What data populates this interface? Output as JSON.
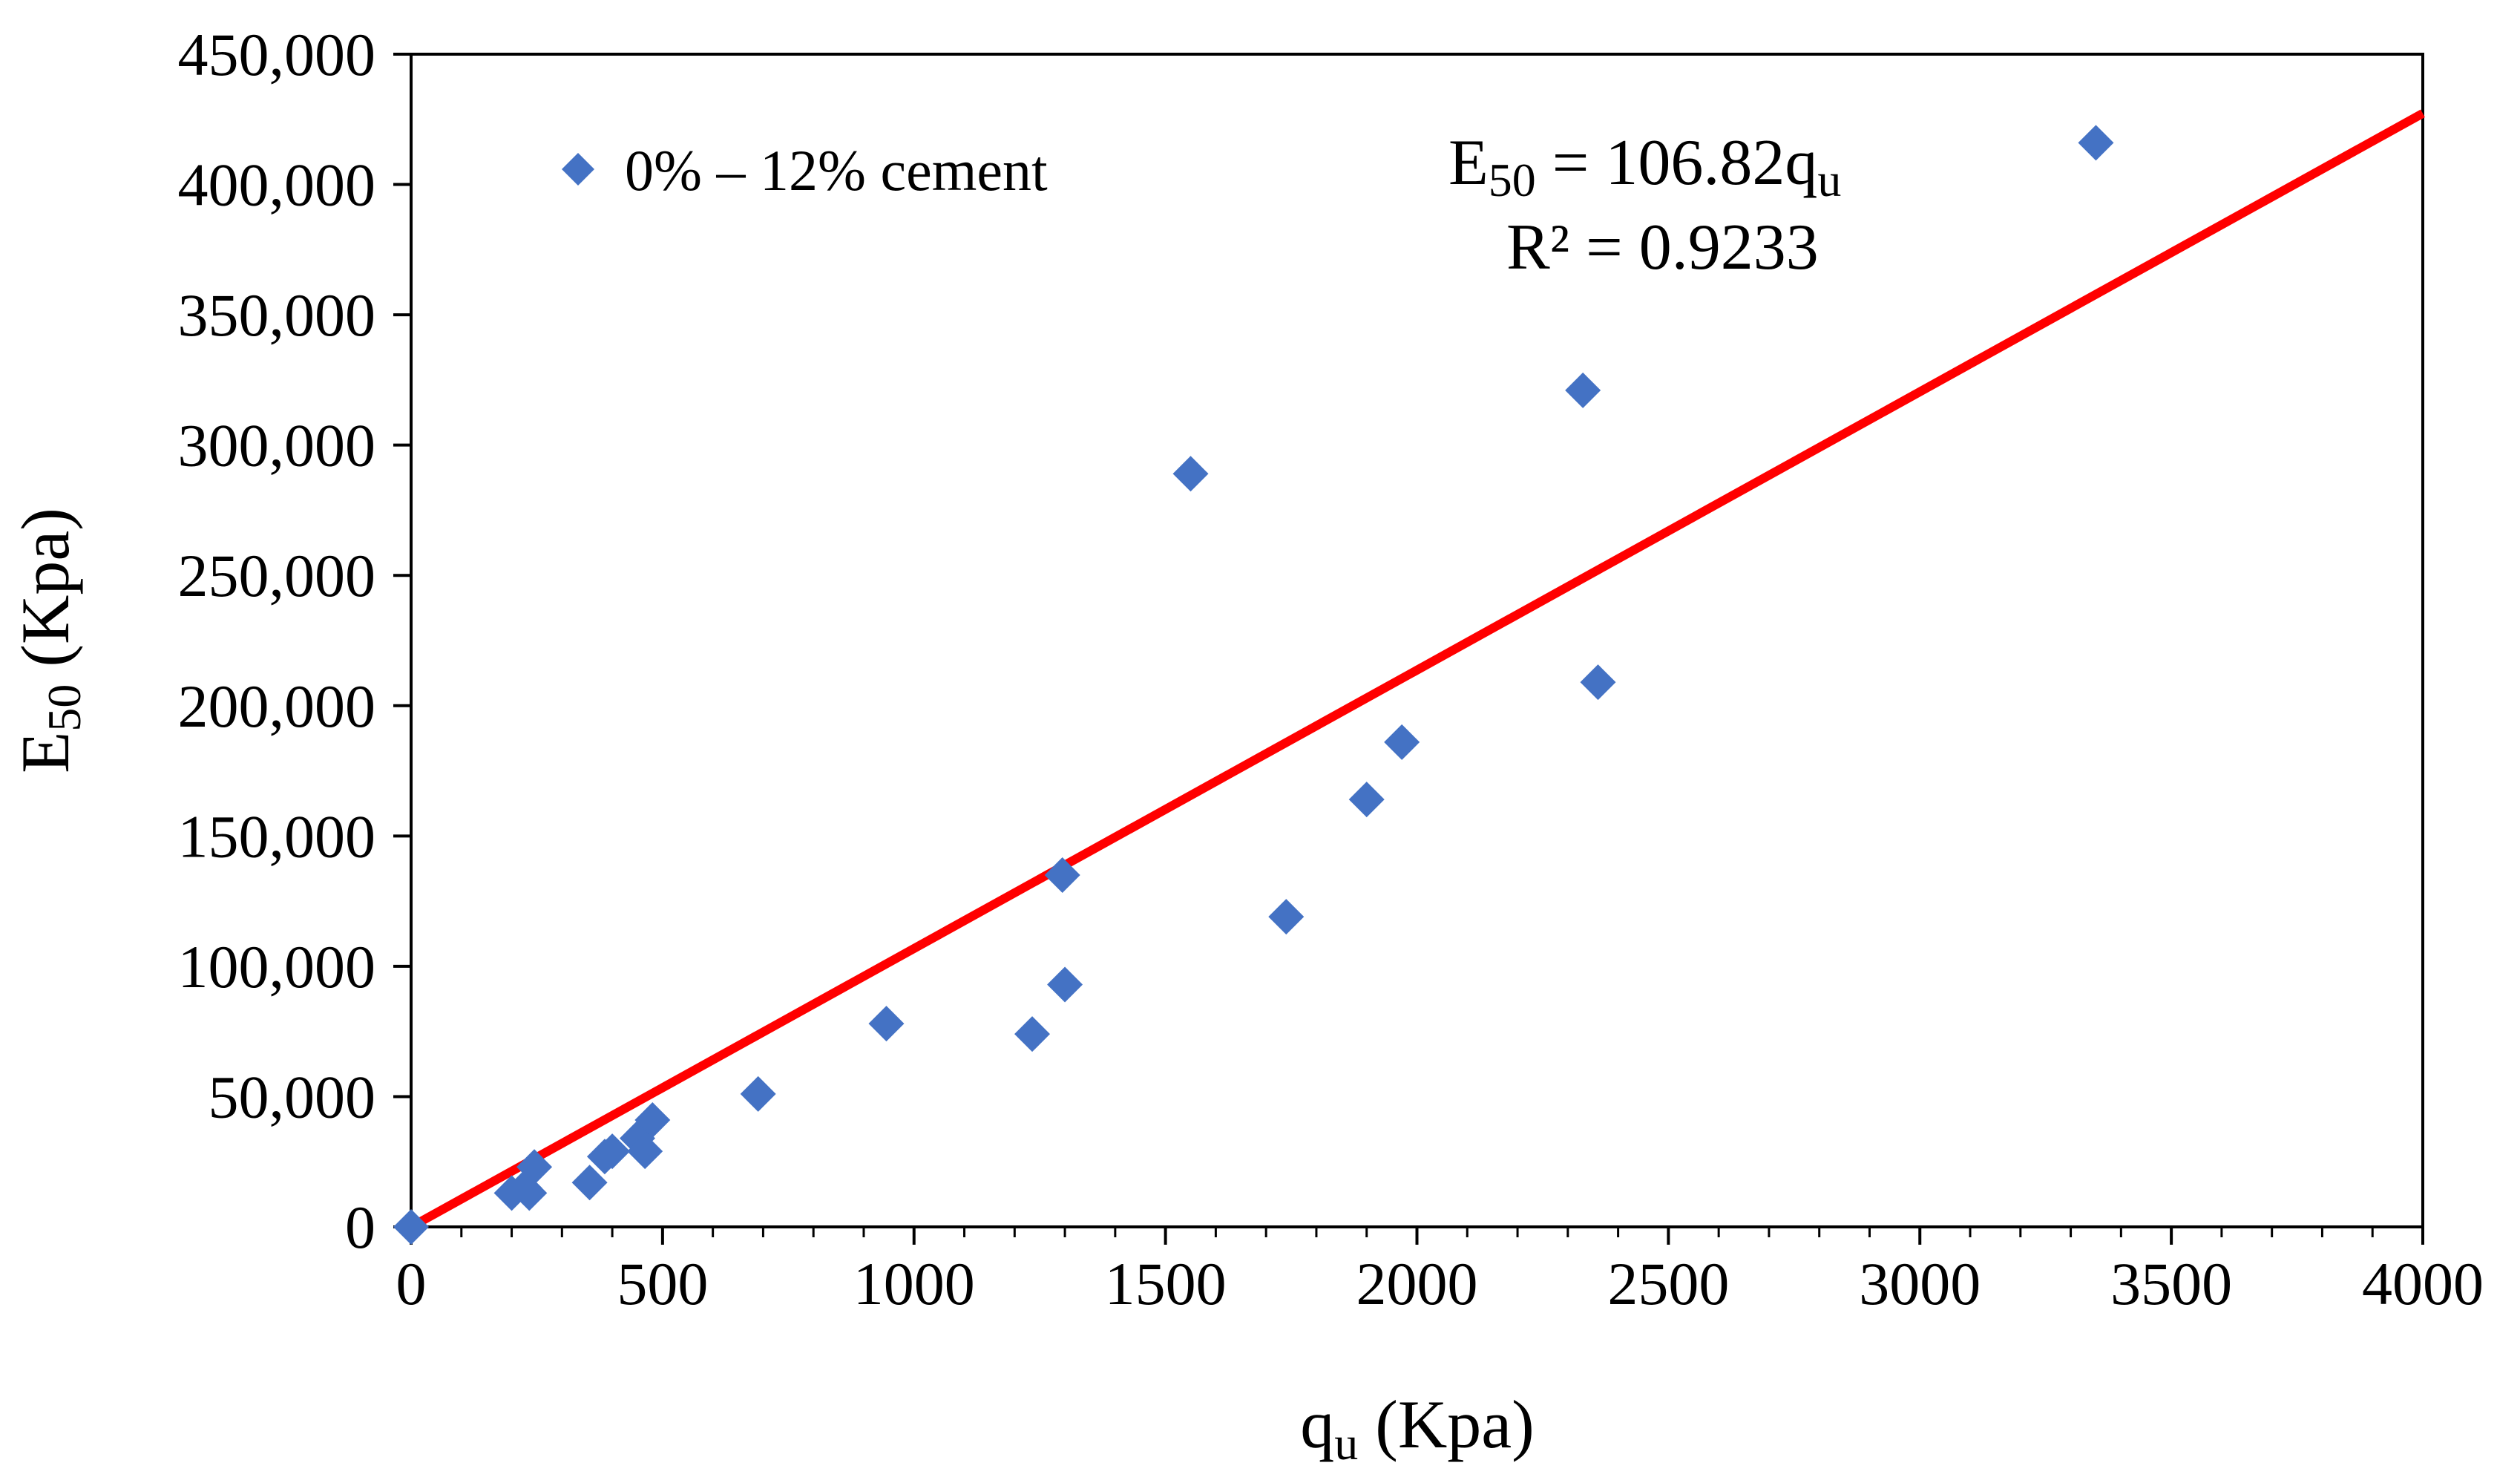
{
  "chart_data": {
    "type": "scatter",
    "title": "",
    "xlabel": {
      "main": "q",
      "sub": "u",
      "rest": " (Kpa)"
    },
    "ylabel": {
      "main": "E",
      "sub": "50",
      "rest": " (Kpa)"
    },
    "xlim": [
      0,
      4000
    ],
    "ylim": [
      0,
      450000
    ],
    "x_ticks": [
      0,
      500,
      1000,
      1500,
      2000,
      2500,
      3000,
      3500,
      4000
    ],
    "x_tick_labels": [
      "0",
      "500",
      "1000",
      "1500",
      "2000",
      "2500",
      "3000",
      "3500",
      "4000"
    ],
    "y_ticks": [
      0,
      50000,
      100000,
      150000,
      200000,
      250000,
      300000,
      350000,
      400000,
      450000
    ],
    "y_tick_labels": [
      "0",
      "50,000",
      "100,000",
      "150,000",
      "200,000",
      "250,000",
      "300,000",
      "350,000",
      "400,000",
      "450,000"
    ],
    "grid": false,
    "legend": {
      "position": "top-left",
      "label": "0% – 12% cement"
    },
    "series": [
      {
        "name": "0% – 12% cement",
        "marker": "diamond",
        "color": "#4472C4",
        "points": [
          [
            0,
            0
          ],
          [
            200,
            13000
          ],
          [
            225,
            15000
          ],
          [
            235,
            13000
          ],
          [
            245,
            23000
          ],
          [
            355,
            17000
          ],
          [
            385,
            27000
          ],
          [
            400,
            29000
          ],
          [
            450,
            34000
          ],
          [
            465,
            29000
          ],
          [
            480,
            41000
          ],
          [
            690,
            51000
          ],
          [
            945,
            78000
          ],
          [
            1235,
            74000
          ],
          [
            1295,
            135000
          ],
          [
            1300,
            93000
          ],
          [
            1550,
            289000
          ],
          [
            1740,
            119000
          ],
          [
            1900,
            164000
          ],
          [
            1970,
            186000
          ],
          [
            2330,
            321000
          ],
          [
            2360,
            209000
          ],
          [
            3350,
            416000
          ]
        ]
      }
    ],
    "trendline": {
      "type": "linear",
      "slope": 106.82,
      "intercept": 0,
      "color": "#FF0000",
      "x_range": [
        0,
        4000
      ],
      "equation": {
        "lhs_main": "E",
        "lhs_sub": "50",
        "rhs_main": " = 106.82q",
        "rhs_sub": "u"
      },
      "r_squared_label": "R² = 0.9233"
    }
  }
}
